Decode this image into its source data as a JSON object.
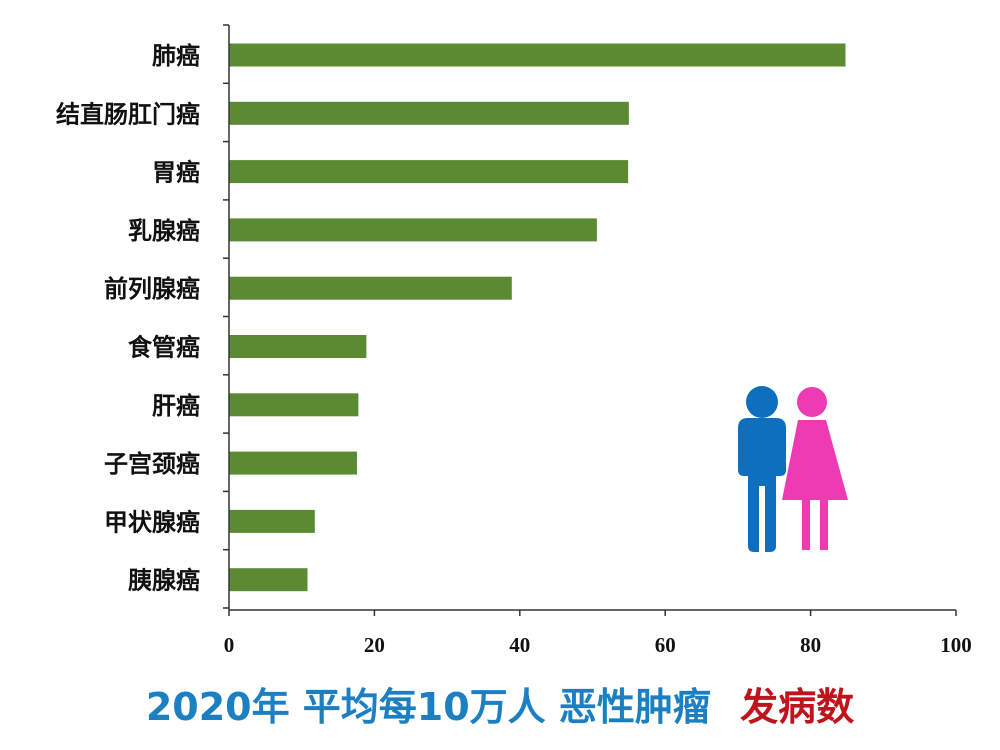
{
  "chart_data": {
    "type": "bar",
    "orientation": "horizontal",
    "categories": [
      "肺癌",
      "结直肠肛门癌",
      "胃癌",
      "乳腺癌",
      "前列腺癌",
      "食管癌",
      "肝癌",
      "子宫颈癌",
      "甲状腺癌",
      "胰腺癌"
    ],
    "values": [
      84.8,
      55.0,
      54.9,
      50.6,
      38.9,
      18.9,
      17.8,
      17.6,
      11.8,
      10.8
    ],
    "xlim": [
      0,
      100
    ],
    "xticks": [
      0,
      20,
      40,
      60,
      80,
      100
    ],
    "xlabel": "",
    "ylabel": "",
    "grid": false,
    "bar_color": "#5B8A32"
  },
  "caption": {
    "part1": "2020年 平均每10万人 恶性肿瘤",
    "part2": "发病数",
    "part1_color": "#1B7FC2",
    "part2_color": "#C0141C"
  },
  "icons": {
    "male": {
      "name": "male-figure-icon",
      "color": "#0E6FBF"
    },
    "female": {
      "name": "female-figure-icon",
      "color": "#EE3BB4"
    }
  }
}
